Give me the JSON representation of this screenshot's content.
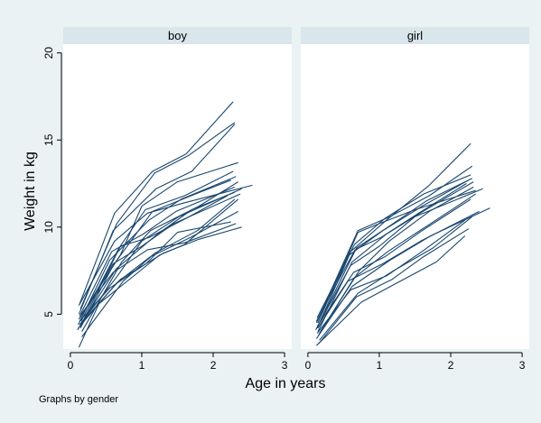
{
  "chart_data": {
    "type": "line",
    "xlabel": "Age in years",
    "ylabel": "Weight in kg",
    "note": "Graphs by gender",
    "xlim": [
      0,
      3
    ],
    "ylim": [
      3,
      20.5
    ],
    "xticks": [
      0,
      1,
      2,
      3
    ],
    "yticks": [
      5,
      10,
      15,
      20
    ],
    "grid": false,
    "line_color": "#1a476f",
    "panel_background": "#ffffff",
    "strip_background": "#d9e6eb",
    "page_background": "#eaf2f3",
    "panels": [
      {
        "title": "boy",
        "series": [
          {
            "x": [
              0.13,
              0.62,
              1.15,
              1.62,
              2.28
            ],
            "y": [
              5.6,
              10.8,
              13.2,
              14.2,
              17.2
            ]
          },
          {
            "x": [
              0.14,
              0.65,
              1.18,
              1.65,
              2.3
            ],
            "y": [
              5.3,
              10.2,
              13.1,
              14.1,
              16.0
            ]
          },
          {
            "x": [
              0.12,
              0.6,
              1.2,
              1.7,
              2.3
            ],
            "y": [
              5.0,
              9.8,
              12.2,
              13.2,
              15.9
            ]
          },
          {
            "x": [
              0.13,
              0.7,
              1.0,
              1.5,
              2.35
            ],
            "y": [
              4.8,
              8.4,
              11.2,
              12.6,
              13.7
            ]
          },
          {
            "x": [
              0.15,
              0.68,
              1.05,
              1.6,
              2.28
            ],
            "y": [
              4.6,
              8.8,
              11.0,
              11.8,
              13.2
            ]
          },
          {
            "x": [
              0.11,
              0.55,
              1.1,
              1.55,
              2.32
            ],
            "y": [
              4.4,
              8.1,
              10.4,
              11.6,
              12.9
            ]
          },
          {
            "x": [
              0.14,
              0.6,
              1.15,
              1.75,
              2.25
            ],
            "y": [
              4.2,
              7.8,
              10.9,
              11.9,
              12.7
            ]
          },
          {
            "x": [
              0.16,
              0.72,
              1.12,
              1.8,
              2.35
            ],
            "y": [
              4.0,
              8.0,
              9.8,
              11.2,
              12.6
            ]
          },
          {
            "x": [
              0.12,
              0.62,
              1.08,
              1.6,
              2.55
            ],
            "y": [
              5.5,
              9.2,
              10.8,
              11.4,
              12.4
            ]
          },
          {
            "x": [
              0.13,
              0.58,
              1.02,
              1.48,
              2.3
            ],
            "y": [
              4.9,
              8.6,
              9.6,
              10.9,
              12.3
            ]
          },
          {
            "x": [
              0.15,
              0.66,
              1.0,
              1.52,
              2.4
            ],
            "y": [
              4.5,
              7.2,
              9.2,
              10.6,
              12.2
            ]
          },
          {
            "x": [
              0.1,
              0.64,
              1.22,
              1.7,
              2.3
            ],
            "y": [
              4.1,
              7.6,
              9.6,
              11.0,
              12.0
            ]
          },
          {
            "x": [
              0.14,
              0.7,
              1.1,
              1.62,
              2.2
            ],
            "y": [
              4.3,
              8.9,
              9.4,
              10.5,
              11.8
            ]
          },
          {
            "x": [
              0.12,
              0.6,
              1.0,
              1.45,
              2.38
            ],
            "y": [
              4.7,
              7.9,
              8.9,
              10.2,
              11.9
            ]
          },
          {
            "x": [
              0.16,
              0.74,
              1.18,
              1.78,
              2.3
            ],
            "y": [
              3.7,
              6.9,
              8.5,
              9.8,
              11.6
            ]
          },
          {
            "x": [
              0.13,
              0.55,
              1.06,
              1.5,
              2.25
            ],
            "y": [
              4.6,
              6.5,
              7.9,
              9.7,
              10.3
            ]
          },
          {
            "x": [
              0.11,
              0.65,
              1.12,
              1.68,
              2.35
            ],
            "y": [
              4.2,
              6.8,
              8.3,
              9.4,
              10.9
            ]
          },
          {
            "x": [
              0.15,
              0.6,
              1.08,
              1.6,
              2.32
            ],
            "y": [
              5.0,
              7.4,
              8.7,
              9.1,
              10.2
            ]
          },
          {
            "x": [
              0.13,
              0.7,
              1.3,
              1.8,
              2.4
            ],
            "y": [
              4.4,
              7.0,
              8.5,
              9.3,
              10.0
            ]
          },
          {
            "x": [
              0.12,
              0.4,
              0.95,
              1.25,
              1.6,
              2.35
            ],
            "y": [
              3.1,
              5.6,
              7.4,
              8.4,
              9.0,
              11.6
            ]
          }
        ]
      },
      {
        "title": "girl",
        "series": [
          {
            "x": [
              0.13,
              0.6,
              1.1,
              1.7,
              2.28
            ],
            "y": [
              4.8,
              8.6,
              10.4,
              12.4,
              14.8
            ]
          },
          {
            "x": [
              0.14,
              0.7,
              1.15,
              1.7,
              2.3
            ],
            "y": [
              4.7,
              9.8,
              10.6,
              11.8,
              13.5
            ]
          },
          {
            "x": [
              0.12,
              0.65,
              1.08,
              1.62,
              2.28
            ],
            "y": [
              4.5,
              9.0,
              10.5,
              11.9,
              13.0
            ]
          },
          {
            "x": [
              0.15,
              0.68,
              1.12,
              1.66,
              2.3
            ],
            "y": [
              4.4,
              8.8,
              10.0,
              11.5,
              12.8
            ]
          },
          {
            "x": [
              0.13,
              0.58,
              1.05,
              1.6,
              2.25
            ],
            "y": [
              4.2,
              8.4,
              9.8,
              11.2,
              12.7
            ]
          },
          {
            "x": [
              0.14,
              0.62,
              1.1,
              1.65,
              2.32
            ],
            "y": [
              4.0,
              8.0,
              9.6,
              11.0,
              12.6
            ]
          },
          {
            "x": [
              0.12,
              0.66,
              1.02,
              1.55,
              2.22
            ],
            "y": [
              4.6,
              8.7,
              9.4,
              10.8,
              12.5
            ]
          },
          {
            "x": [
              0.16,
              0.72,
              1.14,
              1.7,
              2.32
            ],
            "y": [
              3.9,
              7.5,
              9.2,
              10.9,
              12.3
            ]
          },
          {
            "x": [
              0.11,
              0.6,
              1.0,
              1.5,
              2.45
            ],
            "y": [
              4.1,
              7.8,
              8.9,
              10.6,
              12.2
            ]
          },
          {
            "x": [
              0.15,
              0.65,
              1.12,
              1.68,
              2.35
            ],
            "y": [
              3.8,
              7.1,
              8.6,
              10.1,
              11.9
            ]
          },
          {
            "x": [
              0.13,
              0.64,
              1.08,
              1.6,
              2.28
            ],
            "y": [
              4.3,
              7.4,
              8.3,
              9.8,
              11.6
            ]
          },
          {
            "x": [
              0.12,
              0.62,
              1.15,
              1.72,
              2.55
            ],
            "y": [
              3.6,
              6.6,
              8.1,
              9.5,
              11.1
            ]
          },
          {
            "x": [
              0.14,
              0.56,
              1.05,
              1.58,
              2.4
            ],
            "y": [
              4.2,
              6.9,
              7.9,
              9.2,
              10.9
            ]
          },
          {
            "x": [
              0.16,
              0.7,
              1.2,
              1.75,
              2.3
            ],
            "y": [
              3.5,
              6.2,
              7.5,
              8.8,
              10.6
            ]
          },
          {
            "x": [
              0.13,
              0.6,
              1.1,
              1.6,
              2.2
            ],
            "y": [
              3.9,
              6.4,
              7.2,
              8.6,
              10.4
            ]
          },
          {
            "x": [
              0.15,
              0.68,
              1.18,
              1.62,
              2.25
            ],
            "y": [
              3.3,
              6.0,
              7.0,
              8.3,
              9.9
            ]
          },
          {
            "x": [
              0.12,
              0.75,
              1.25,
              1.8,
              2.2
            ],
            "y": [
              3.2,
              5.7,
              6.8,
              8.0,
              9.5
            ]
          },
          {
            "x": [
              0.14,
              0.7,
              1.0,
              1.5,
              2.35
            ],
            "y": [
              4.5,
              9.7,
              10.2,
              11.0,
              12.1
            ]
          }
        ]
      }
    ]
  }
}
